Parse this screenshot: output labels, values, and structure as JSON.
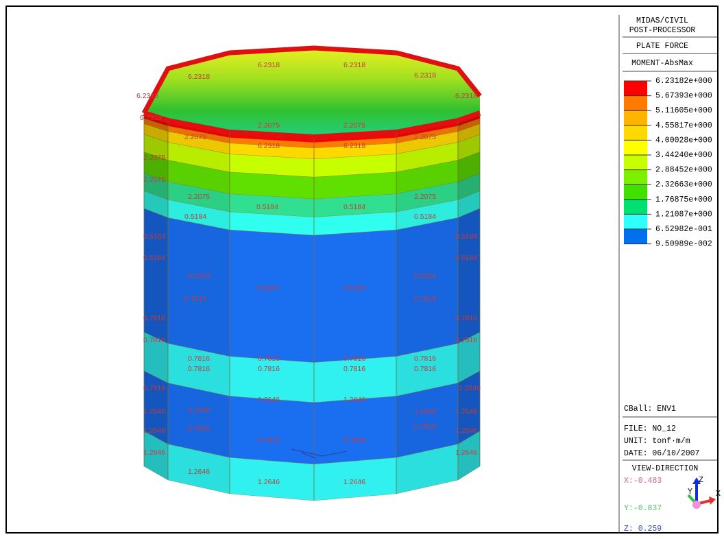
{
  "header": {
    "program": "MIDAS/CIVIL",
    "module": "POST-PROCESSOR",
    "result": "PLATE FORCE",
    "component": "MOMENT-AbsMax"
  },
  "legend": {
    "values": [
      "6.23182e+000",
      "5.67393e+000",
      "5.11605e+000",
      "4.55817e+000",
      "4.00028e+000",
      "3.44240e+000",
      "2.88452e+000",
      "2.32663e+000",
      "1.76875e+000",
      "1.21087e+000",
      "6.52982e-001",
      "9.50989e-002"
    ],
    "colors": [
      "#ff0000",
      "#ff7a00",
      "#ffb400",
      "#ffd800",
      "#ffff00",
      "#c8ff00",
      "#7cf000",
      "#40e000",
      "#00e070",
      "#30ffff",
      "#0070f0"
    ]
  },
  "info": {
    "load": "CBall: ENV1",
    "file": "FILE: NO_12",
    "unit": "UNIT: tonf·m/m",
    "date": "DATE: 06/10/2007",
    "view": "VIEW-DIRECTION",
    "x": "X:-0.483",
    "y": "Y:-0.837",
    "z": "Z: 0.259",
    "axis_x": "X",
    "axis_y": "Y",
    "axis_z": "Z"
  },
  "model": {
    "labels": [
      "6.2318",
      "6.2318",
      "6.2318",
      "6.2318",
      "6.2318",
      "6.2318",
      "6.2318",
      "6.2318",
      "6.2318",
      "2.2075",
      "2.2075",
      "2.2075",
      "2.2075",
      "2.2075",
      "2.2075",
      "2.2075",
      "2.2075",
      "0.5184",
      "0.5184",
      "0.5184",
      "0.5184",
      "0.5184",
      "0.5184",
      "0.5184",
      "0.5184",
      "0.5184",
      "0.5184",
      "0.5184",
      "0.5184",
      "0.7816",
      "0.7816",
      "0.7816",
      "0.7816",
      "0.7816",
      "0.7816",
      "0.7816",
      "0.7816",
      "0.7816",
      "0.7816",
      "0.7816",
      "0.7816",
      "0.7816",
      "0.7816",
      "0.7816",
      "0.7816",
      "0.7816",
      "0.7816",
      "0.7816",
      "1.2646",
      "1.2646",
      "1.2646",
      "1.2646",
      "1.2646",
      "1.2646",
      "1.2646",
      "1.2646",
      "1.2646",
      "1.2646",
      "1.2646",
      "1.2646",
      "1.2646",
      "1.2646"
    ]
  }
}
